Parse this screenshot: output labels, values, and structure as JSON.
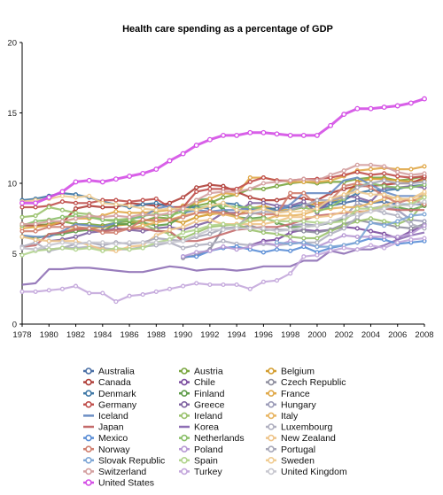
{
  "chart_data": {
    "type": "line",
    "title": "Health care spending as a percentage of GDP",
    "xlabel": "",
    "ylabel": "",
    "xlim": [
      1978,
      2008
    ],
    "ylim": [
      0,
      20
    ],
    "x_ticks": [
      "1978",
      "1980",
      "1982",
      "1984",
      "1986",
      "1988",
      "1990",
      "1992",
      "1994",
      "1996",
      "1998",
      "2000",
      "2002",
      "2004",
      "2006",
      "2008"
    ],
    "y_ticks": [
      "0",
      "5",
      "10",
      "15",
      "20"
    ],
    "grid": false,
    "legend_position": "bottom",
    "x": [
      1978,
      1979,
      1980,
      1981,
      1982,
      1983,
      1984,
      1985,
      1986,
      1987,
      1988,
      1989,
      1990,
      1991,
      1992,
      1993,
      1994,
      1995,
      1996,
      1997,
      1998,
      1999,
      2000,
      2001,
      2002,
      2003,
      2004,
      2005,
      2006,
      2007,
      2008
    ],
    "series": [
      {
        "name": "Australia",
        "color": "#4a6fa5",
        "marker": true,
        "values": [
          null,
          null,
          null,
          null,
          null,
          null,
          null,
          null,
          null,
          null,
          null,
          null,
          null,
          null,
          null,
          null,
          null,
          null,
          null,
          null,
          null,
          null,
          8.2,
          8.4,
          8.6,
          8.8,
          8.6,
          8.7,
          8.5,
          8.5,
          8.5
        ]
      },
      {
        "name": "Austria",
        "color": "#7aa640",
        "marker": true,
        "values": [
          7.1,
          7.0,
          7.1,
          7.3,
          7.1,
          7.1,
          7.0,
          7.2,
          7.3,
          7.3,
          7.6,
          7.5,
          8.4,
          8.4,
          8.6,
          9.0,
          9.2,
          9.6,
          9.6,
          9.8,
          10.0,
          10.1,
          10.0,
          10.1,
          10.1,
          10.3,
          10.4,
          10.4,
          10.2,
          10.3,
          10.5
        ]
      },
      {
        "name": "Belgium",
        "color": "#d39d2f",
        "marker": true,
        "values": [
          null,
          null,
          6.3,
          6.5,
          6.8,
          6.8,
          6.9,
          7.0,
          7.1,
          7.4,
          7.3,
          7.4,
          7.2,
          7.6,
          7.8,
          7.9,
          7.7,
          8.2,
          8.4,
          8.1,
          8.1,
          8.3,
          8.6,
          8.7,
          9.0,
          10.1,
          10.3,
          10.3,
          10.2,
          10.1,
          10.2
        ]
      },
      {
        "name": "Canada",
        "color": "#b0403a",
        "marker": true,
        "values": [
          7.0,
          7.0,
          7.0,
          7.2,
          8.2,
          8.4,
          8.3,
          8.3,
          8.6,
          8.5,
          8.4,
          8.6,
          9.0,
          9.7,
          9.9,
          9.8,
          9.4,
          9.0,
          8.8,
          8.8,
          9.0,
          8.9,
          8.8,
          9.3,
          9.6,
          9.8,
          9.8,
          9.9,
          10.0,
          10.0,
          10.4
        ]
      },
      {
        "name": "Chile",
        "color": "#7c4fa0",
        "marker": true,
        "values": [
          null,
          null,
          null,
          null,
          null,
          null,
          null,
          null,
          null,
          null,
          null,
          null,
          null,
          null,
          null,
          null,
          null,
          5.6,
          5.9,
          6.0,
          6.5,
          6.7,
          6.6,
          6.7,
          6.9,
          6.8,
          6.6,
          6.4,
          6.1,
          6.6,
          7.0
        ]
      },
      {
        "name": "Czech Republic",
        "color": "#8f8f9f",
        "marker": true,
        "values": [
          null,
          null,
          null,
          null,
          null,
          null,
          null,
          null,
          null,
          null,
          null,
          null,
          4.7,
          4.9,
          5.3,
          6.8,
          6.8,
          7.0,
          6.7,
          6.7,
          6.7,
          6.6,
          6.5,
          6.7,
          7.1,
          7.4,
          7.2,
          7.1,
          6.9,
          6.8,
          7.1
        ]
      },
      {
        "name": "Denmark",
        "color": "#3f78a6",
        "marker": true,
        "values": [
          8.8,
          8.9,
          9.1,
          9.3,
          9.2,
          9.0,
          8.7,
          8.5,
          8.3,
          8.5,
          8.6,
          8.3,
          8.3,
          8.3,
          8.2,
          8.6,
          8.5,
          8.1,
          8.2,
          8.2,
          8.3,
          8.5,
          8.3,
          8.6,
          8.8,
          9.3,
          9.5,
          9.5,
          9.6,
          9.8,
          9.9
        ]
      },
      {
        "name": "Finland",
        "color": "#5f9c4a",
        "marker": true,
        "values": [
          6.2,
          6.1,
          6.3,
          6.4,
          6.6,
          6.7,
          6.6,
          7.1,
          7.1,
          7.2,
          7.0,
          7.1,
          7.7,
          8.8,
          8.9,
          8.1,
          7.6,
          7.5,
          7.6,
          7.2,
          6.9,
          6.9,
          7.0,
          7.2,
          7.5,
          7.9,
          8.1,
          8.4,
          8.3,
          8.1,
          8.4
        ]
      },
      {
        "name": "France",
        "color": "#e0a94a",
        "marker": true,
        "values": [
          6.8,
          6.9,
          7.0,
          7.3,
          7.5,
          7.5,
          7.7,
          8.0,
          7.9,
          7.9,
          8.0,
          8.1,
          8.4,
          8.6,
          8.9,
          9.3,
          9.2,
          10.4,
          10.4,
          10.2,
          10.1,
          10.1,
          10.1,
          10.2,
          10.5,
          10.9,
          11.0,
          11.1,
          11.0,
          11.0,
          11.2
        ]
      },
      {
        "name": "Germany",
        "color": "#c0504d",
        "marker": true,
        "values": [
          8.3,
          8.3,
          8.4,
          8.7,
          8.6,
          8.6,
          8.8,
          8.8,
          8.7,
          8.8,
          8.9,
          8.3,
          8.3,
          9.4,
          9.6,
          9.6,
          9.6,
          10.1,
          10.4,
          10.2,
          10.2,
          10.3,
          10.3,
          10.4,
          10.6,
          10.8,
          10.6,
          10.7,
          10.5,
          10.4,
          10.5
        ]
      },
      {
        "name": "Greece",
        "color": "#8064a2",
        "marker": true,
        "values": [
          null,
          null,
          5.9,
          6.0,
          6.2,
          6.5,
          6.6,
          6.8,
          6.7,
          6.6,
          6.8,
          6.9,
          6.7,
          7.0,
          7.3,
          7.9,
          7.9,
          8.6,
          8.6,
          8.4,
          8.4,
          8.7,
          7.9,
          8.8,
          9.1,
          9.0,
          8.7,
          9.7,
          9.7,
          9.8,
          9.7
        ]
      },
      {
        "name": "Hungary",
        "color": "#9c9cb8",
        "marker": true,
        "values": [
          null,
          null,
          null,
          null,
          null,
          null,
          null,
          null,
          null,
          null,
          null,
          null,
          null,
          null,
          null,
          null,
          null,
          null,
          null,
          null,
          7.0,
          7.1,
          7.0,
          7.2,
          7.6,
          8.6,
          8.2,
          8.4,
          8.1,
          7.4,
          7.3
        ]
      },
      {
        "name": "Iceland",
        "color": "#6c8ec4",
        "marker": false,
        "values": [
          6.3,
          6.2,
          6.2,
          6.6,
          7.1,
          7.0,
          6.9,
          7.2,
          7.5,
          7.6,
          8.2,
          8.4,
          7.9,
          8.1,
          8.0,
          8.1,
          8.1,
          8.2,
          8.2,
          8.0,
          8.5,
          9.3,
          9.3,
          9.3,
          10.2,
          10.4,
          9.9,
          9.4,
          9.1,
          9.1,
          9.1
        ]
      },
      {
        "name": "Ireland",
        "color": "#9bc26e",
        "marker": true,
        "values": [
          7.6,
          7.7,
          8.3,
          8.1,
          7.9,
          7.8,
          7.4,
          7.4,
          7.5,
          7.1,
          6.7,
          6.4,
          6.1,
          6.5,
          6.9,
          7.0,
          7.1,
          6.7,
          6.5,
          6.4,
          6.2,
          6.1,
          6.1,
          6.6,
          7.0,
          7.3,
          7.5,
          7.3,
          7.1,
          7.5,
          8.7
        ]
      },
      {
        "name": "Italy",
        "color": "#e8b563",
        "marker": true,
        "values": [
          null,
          null,
          null,
          null,
          null,
          null,
          null,
          null,
          6.8,
          7.0,
          7.2,
          7.4,
          7.7,
          7.9,
          7.9,
          7.8,
          7.6,
          7.3,
          7.4,
          7.7,
          7.7,
          7.8,
          8.1,
          8.2,
          8.3,
          8.3,
          8.6,
          8.9,
          9.0,
          8.7,
          9.1
        ]
      },
      {
        "name": "Japan",
        "color": "#c46a6a",
        "marker": false,
        "values": [
          5.5,
          5.6,
          6.4,
          6.5,
          6.7,
          6.8,
          6.6,
          6.7,
          6.8,
          6.8,
          6.6,
          6.6,
          5.9,
          5.9,
          6.1,
          6.4,
          6.7,
          6.8,
          6.9,
          6.9,
          7.1,
          7.4,
          7.7,
          7.8,
          7.9,
          8.0,
          8.0,
          8.2,
          8.1,
          8.1,
          8.1
        ]
      },
      {
        "name": "Korea",
        "color": "#8e6fb5",
        "marker": false,
        "values": [
          2.8,
          2.9,
          3.9,
          3.9,
          4.0,
          4.0,
          3.9,
          3.8,
          3.7,
          3.7,
          3.9,
          4.1,
          4.0,
          3.8,
          3.9,
          3.9,
          3.8,
          3.9,
          4.1,
          4.1,
          4.1,
          4.5,
          4.5,
          5.2,
          5.0,
          5.3,
          5.3,
          5.6,
          6.0,
          6.3,
          6.5
        ]
      },
      {
        "name": "Luxembourg",
        "color": "#b0b0c0",
        "marker": true,
        "values": [
          5.5,
          5.8,
          5.2,
          5.4,
          5.4,
          5.5,
          5.4,
          5.3,
          5.3,
          5.5,
          5.6,
          5.8,
          5.4,
          5.6,
          5.7,
          5.9,
          5.7,
          5.6,
          5.7,
          5.6,
          5.7,
          5.8,
          5.8,
          6.4,
          6.8,
          7.6,
          8.2,
          7.9,
          7.7,
          7.1,
          6.8
        ]
      },
      {
        "name": "Mexico",
        "color": "#5b8ed6",
        "marker": true,
        "values": [
          null,
          null,
          null,
          null,
          null,
          null,
          null,
          null,
          null,
          null,
          null,
          null,
          4.8,
          4.8,
          5.2,
          5.4,
          5.5,
          5.3,
          5.1,
          5.3,
          5.2,
          5.5,
          5.1,
          5.4,
          5.6,
          5.8,
          6.1,
          6.0,
          5.7,
          5.8,
          5.9
        ]
      },
      {
        "name": "Netherlands",
        "color": "#8bc06a",
        "marker": true,
        "values": [
          7.0,
          7.3,
          7.4,
          7.6,
          7.7,
          7.6,
          7.4,
          7.3,
          7.4,
          7.7,
          7.8,
          7.7,
          8.0,
          8.2,
          8.4,
          8.4,
          8.3,
          8.3,
          8.2,
          7.9,
          8.1,
          8.3,
          8.0,
          8.3,
          8.9,
          9.8,
          10.0,
          9.8,
          9.7,
          9.7,
          9.9
        ]
      },
      {
        "name": "New Zealand",
        "color": "#eec48a",
        "marker": true,
        "values": [
          6.2,
          6.0,
          5.9,
          5.9,
          5.9,
          5.6,
          5.3,
          5.2,
          5.5,
          5.6,
          6.3,
          6.7,
          6.9,
          7.3,
          7.4,
          7.1,
          7.1,
          7.1,
          7.1,
          7.3,
          7.6,
          7.6,
          7.6,
          7.7,
          8.0,
          7.9,
          8.1,
          8.4,
          8.8,
          8.9,
          9.3
        ]
      },
      {
        "name": "Norway",
        "color": "#d08070",
        "marker": true,
        "values": [
          6.6,
          6.6,
          6.9,
          6.9,
          6.9,
          6.8,
          6.5,
          6.5,
          6.8,
          7.4,
          7.4,
          7.4,
          7.6,
          7.9,
          8.0,
          7.9,
          7.8,
          7.9,
          7.8,
          7.8,
          9.3,
          9.3,
          8.4,
          8.8,
          9.8,
          10.0,
          9.7,
          9.1,
          8.6,
          8.9,
          8.5
        ]
      },
      {
        "name": "Poland",
        "color": "#b89ad4",
        "marker": true,
        "values": [
          null,
          null,
          null,
          null,
          null,
          null,
          null,
          null,
          null,
          null,
          null,
          null,
          4.8,
          5.1,
          5.2,
          5.5,
          5.3,
          5.5,
          5.8,
          5.6,
          5.9,
          5.7,
          5.5,
          5.9,
          6.3,
          6.2,
          6.2,
          6.2,
          6.2,
          6.4,
          7.0
        ]
      },
      {
        "name": "Portugal",
        "color": "#a8a8b8",
        "marker": true,
        "values": [
          5.4,
          5.3,
          5.3,
          5.4,
          5.7,
          5.8,
          5.6,
          5.8,
          5.7,
          5.8,
          6.1,
          6.0,
          5.9,
          6.2,
          6.4,
          6.8,
          6.9,
          7.8,
          8.0,
          7.9,
          8.1,
          8.4,
          8.8,
          8.8,
          9.0,
          9.7,
          10.0,
          10.2,
          10.0,
          10.0,
          10.1
        ]
      },
      {
        "name": "Slovak Republic",
        "color": "#7fa7d6",
        "marker": true,
        "values": [
          null,
          null,
          null,
          null,
          null,
          null,
          null,
          null,
          null,
          null,
          null,
          null,
          null,
          null,
          null,
          null,
          null,
          null,
          null,
          5.8,
          5.7,
          5.8,
          5.5,
          5.5,
          5.6,
          5.8,
          7.2,
          7.0,
          7.3,
          7.7,
          7.8
        ]
      },
      {
        "name": "Spain",
        "color": "#b2d48e",
        "marker": true,
        "values": [
          4.9,
          5.2,
          5.3,
          5.4,
          5.3,
          5.4,
          5.2,
          5.4,
          5.3,
          5.4,
          5.8,
          6.0,
          6.5,
          6.7,
          7.0,
          7.1,
          7.0,
          7.4,
          7.5,
          7.3,
          7.3,
          7.3,
          7.2,
          7.2,
          7.3,
          8.2,
          8.2,
          8.3,
          8.4,
          8.5,
          9.0
        ]
      },
      {
        "name": "Sweden",
        "color": "#f0cc92",
        "marker": true,
        "values": [
          8.7,
          8.8,
          8.9,
          9.1,
          9.0,
          9.1,
          8.6,
          8.5,
          8.4,
          8.2,
          8.1,
          8.2,
          8.2,
          8.1,
          8.4,
          8.6,
          8.1,
          8.0,
          8.2,
          7.9,
          8.0,
          8.0,
          8.2,
          8.9,
          9.2,
          9.4,
          9.2,
          9.2,
          8.9,
          8.9,
          9.4
        ]
      },
      {
        "name": "Switzerland",
        "color": "#d4a0a0",
        "marker": true,
        "values": [
          7.1,
          7.1,
          7.3,
          7.3,
          7.5,
          7.7,
          7.6,
          7.7,
          7.6,
          7.8,
          7.7,
          7.9,
          8.2,
          8.8,
          9.3,
          9.4,
          9.4,
          9.6,
          10.0,
          10.1,
          10.2,
          10.3,
          10.2,
          10.6,
          10.9,
          11.3,
          11.3,
          11.2,
          10.8,
          10.6,
          10.7
        ]
      },
      {
        "name": "Turkey",
        "color": "#c4a8dc",
        "marker": true,
        "values": [
          2.3,
          2.3,
          2.4,
          2.5,
          2.7,
          2.2,
          2.2,
          1.6,
          2.0,
          2.1,
          2.3,
          2.5,
          2.7,
          2.9,
          2.8,
          2.8,
          2.8,
          2.5,
          3.0,
          3.1,
          3.6,
          4.8,
          4.9,
          5.2,
          5.4,
          5.3,
          5.6,
          5.4,
          5.8,
          6.0,
          6.1
        ]
      },
      {
        "name": "United Kingdom",
        "color": "#c8c8d0",
        "marker": true,
        "values": [
          5.4,
          5.3,
          5.6,
          5.8,
          5.7,
          5.8,
          5.8,
          5.7,
          5.8,
          5.8,
          5.8,
          5.8,
          5.9,
          6.3,
          6.7,
          6.7,
          6.8,
          6.8,
          6.8,
          6.6,
          6.7,
          6.9,
          7.0,
          7.3,
          7.6,
          7.8,
          8.0,
          8.2,
          8.5,
          8.4,
          8.7
        ]
      },
      {
        "name": "United States",
        "color": "#d44fe6",
        "marker": true,
        "values": [
          8.6,
          8.6,
          9.0,
          9.4,
          10.1,
          10.2,
          10.1,
          10.3,
          10.5,
          10.7,
          11.0,
          11.6,
          12.1,
          12.7,
          13.1,
          13.4,
          13.4,
          13.6,
          13.6,
          13.5,
          13.4,
          13.4,
          13.4,
          14.1,
          14.9,
          15.3,
          15.3,
          15.4,
          15.5,
          15.7,
          16.0
        ]
      }
    ]
  }
}
